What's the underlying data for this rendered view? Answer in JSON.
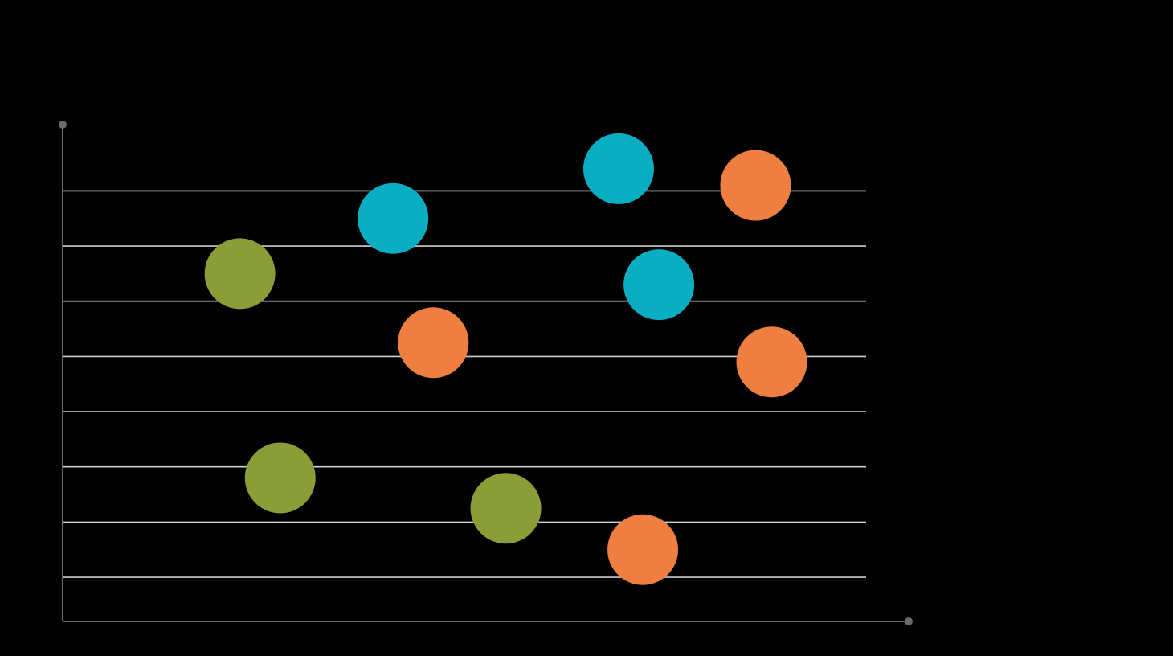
{
  "chart_data": {
    "type": "scatter",
    "title": "",
    "xlabel": "",
    "ylabel": "",
    "grid": true,
    "xlim": [
      0,
      10.5
    ],
    "ylim": [
      0,
      9
    ],
    "gridlines_y": [
      0.8,
      1.8,
      2.8,
      3.8,
      4.8,
      5.8,
      6.8,
      7.8
    ],
    "series": [
      {
        "color": "#8a9d36",
        "points": [
          {
            "x": 2.2,
            "y": 6.3
          },
          {
            "x": 2.7,
            "y": 2.6
          },
          {
            "x": 5.5,
            "y": 2.05
          }
        ]
      },
      {
        "color": "#0aaec2",
        "points": [
          {
            "x": 4.1,
            "y": 7.3
          },
          {
            "x": 6.9,
            "y": 8.2
          },
          {
            "x": 7.4,
            "y": 6.1
          }
        ]
      },
      {
        "color": "#ee7f40",
        "points": [
          {
            "x": 4.6,
            "y": 5.05
          },
          {
            "x": 8.6,
            "y": 7.9
          },
          {
            "x": 8.8,
            "y": 4.7
          },
          {
            "x": 7.2,
            "y": 1.3
          }
        ]
      }
    ],
    "axis_color": "#6b6b6b",
    "grid_color": "#cfcfcf",
    "legend": "none"
  }
}
